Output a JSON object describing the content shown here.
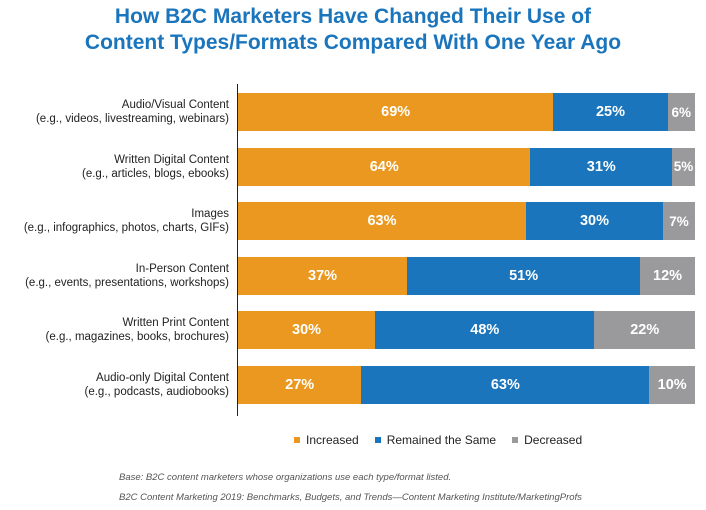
{
  "title_line1": "How B2C Marketers Have Changed Their Use of",
  "title_line2": "Content Types/Formats Compared With One Year Ago",
  "colors": {
    "increased": "#ea981f",
    "same": "#1a75bc",
    "decreased": "#9a9a9c",
    "title": "#1a75bc"
  },
  "chart_data": {
    "type": "bar",
    "orientation": "horizontal",
    "stacked": true,
    "percent_stacked": true,
    "categories": [
      "Audio/Visual Content (e.g., videos, livestreaming, webinars)",
      "Written Digital Content (e.g., articles, blogs, ebooks)",
      "Images (e.g., infographics, photos, charts, GIFs)",
      "In-Person Content (e.g., events, presentations, workshops)",
      "Written Print Content (e.g., magazines, books, brochures)",
      "Audio-only Digital Content (e.g., podcasts, audiobooks)"
    ],
    "category_lines": [
      [
        "Audio/Visual Content",
        "(e.g., videos, livestreaming, webinars)"
      ],
      [
        "Written Digital Content",
        "(e.g., articles, blogs, ebooks)"
      ],
      [
        "Images",
        "(e.g., infographics, photos, charts, GIFs)"
      ],
      [
        "In-Person Content",
        "(e.g., events, presentations, workshops)"
      ],
      [
        "Written Print Content",
        "(e.g., magazines, books, brochures)"
      ],
      [
        "Audio-only Digital Content",
        "(e.g., podcasts, audiobooks)"
      ]
    ],
    "series": [
      {
        "name": "Increased",
        "values": [
          69,
          64,
          63,
          37,
          30,
          27
        ]
      },
      {
        "name": "Remained the Same",
        "values": [
          25,
          31,
          30,
          51,
          48,
          63
        ]
      },
      {
        "name": "Decreased",
        "values": [
          6,
          5,
          7,
          12,
          22,
          10
        ]
      }
    ],
    "value_suffix": "%",
    "legend_position": "bottom",
    "grid": false
  },
  "legend": [
    {
      "label": "Increased",
      "color": "#ea981f"
    },
    {
      "label": "Remained the Same",
      "color": "#1a75bc"
    },
    {
      "label": "Decreased",
      "color": "#9a9a9c"
    }
  ],
  "footnote_base": "Base: B2C content marketers whose organizations use each type/format listed.",
  "footnote_source": "B2C Content Marketing 2019: Benchmarks, Budgets, and Trends—Content Marketing Institute/MarketingProfs"
}
